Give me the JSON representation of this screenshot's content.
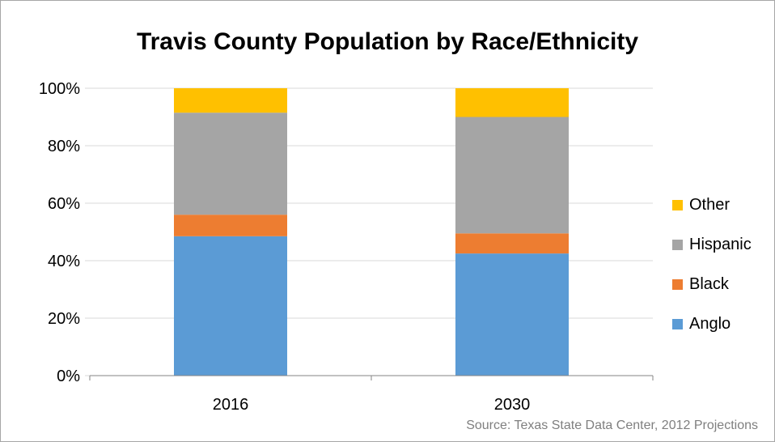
{
  "chart_data": {
    "type": "bar",
    "stacked": true,
    "title": "Travis County Population by Race/Ethnicity",
    "categories": [
      "2016",
      "2030"
    ],
    "series": [
      {
        "name": "Anglo",
        "color": "#5b9bd5",
        "values": [
          48.5,
          42.5
        ]
      },
      {
        "name": "Black",
        "color": "#ed7d31",
        "values": [
          7.5,
          7
        ]
      },
      {
        "name": "Hispanic",
        "color": "#a5a5a5",
        "values": [
          35.5,
          40.5
        ]
      },
      {
        "name": "Other",
        "color": "#ffc000",
        "values": [
          8.5,
          10
        ]
      }
    ],
    "yticks": [
      "0%",
      "20%",
      "40%",
      "60%",
      "80%",
      "100%"
    ],
    "ylim": [
      0,
      100
    ],
    "grid": true,
    "legend_position": "right"
  },
  "source": "Source: Texas State Data Center, 2012 Projections"
}
